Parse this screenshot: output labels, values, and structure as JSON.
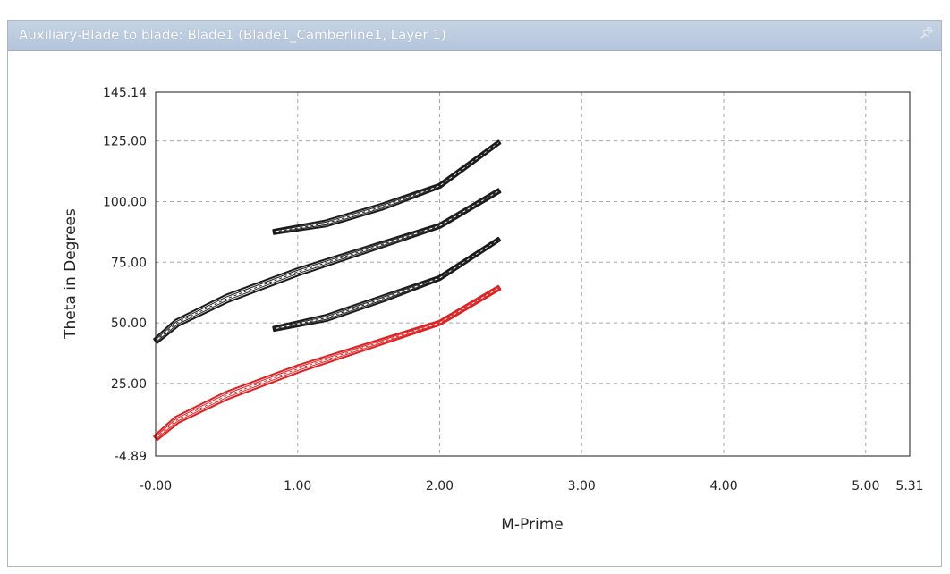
{
  "window": {
    "title": "Auxiliary-Blade to blade: Blade1 (Blade1_Camberline1, Layer 1)",
    "pin_icon": "pin-icon"
  },
  "colors": {
    "titlebar": "#b9c9df",
    "grid": "#a8a8a8",
    "blade_black": "#1a1a1a",
    "blade_red": "#e02020"
  },
  "chart_data": {
    "type": "line",
    "xlabel": "M-Prime",
    "ylabel": "Theta in Degrees",
    "xlim": [
      -0.0,
      5.31
    ],
    "ylim": [
      -4.89,
      145.14
    ],
    "x_ticks": [
      "-0.00",
      "1.00",
      "2.00",
      "3.00",
      "4.00",
      "5.00",
      "5.31"
    ],
    "x_tick_values": [
      0,
      1,
      2,
      3,
      4,
      5,
      5.31
    ],
    "y_ticks": [
      "-4.89",
      "25.00",
      "50.00",
      "75.00",
      "100.00",
      "125.00",
      "145.14"
    ],
    "y_tick_values": [
      -4.89,
      25,
      50,
      75,
      100,
      125,
      145.14
    ],
    "grid": true,
    "series": [
      {
        "color": "#1a1a1a",
        "camber": [
          [
            0.83,
            87.5
          ],
          [
            1.2,
            91
          ],
          [
            1.6,
            98
          ],
          [
            2.0,
            106.5
          ],
          [
            2.42,
            124.5
          ]
        ],
        "thickness": 3.5
      },
      {
        "color": "#1a1a1a",
        "camber": [
          [
            0.0,
            42.5
          ],
          [
            0.15,
            50
          ],
          [
            0.5,
            60
          ],
          [
            1.0,
            71
          ],
          [
            1.5,
            80.5
          ],
          [
            2.0,
            90
          ],
          [
            2.42,
            104.5
          ]
        ],
        "thickness": 4.2
      },
      {
        "color": "#1a1a1a",
        "camber": [
          [
            0.83,
            47.5
          ],
          [
            1.2,
            52
          ],
          [
            1.6,
            60
          ],
          [
            2.0,
            68.5
          ],
          [
            2.42,
            84.5
          ]
        ],
        "thickness": 3.5
      },
      {
        "color": "#e02020",
        "camber": [
          [
            0.0,
            2.5
          ],
          [
            0.15,
            10
          ],
          [
            0.5,
            20
          ],
          [
            1.0,
            31
          ],
          [
            1.5,
            40.5
          ],
          [
            2.0,
            50
          ],
          [
            2.42,
            64.5
          ]
        ],
        "thickness": 4.2
      }
    ]
  }
}
